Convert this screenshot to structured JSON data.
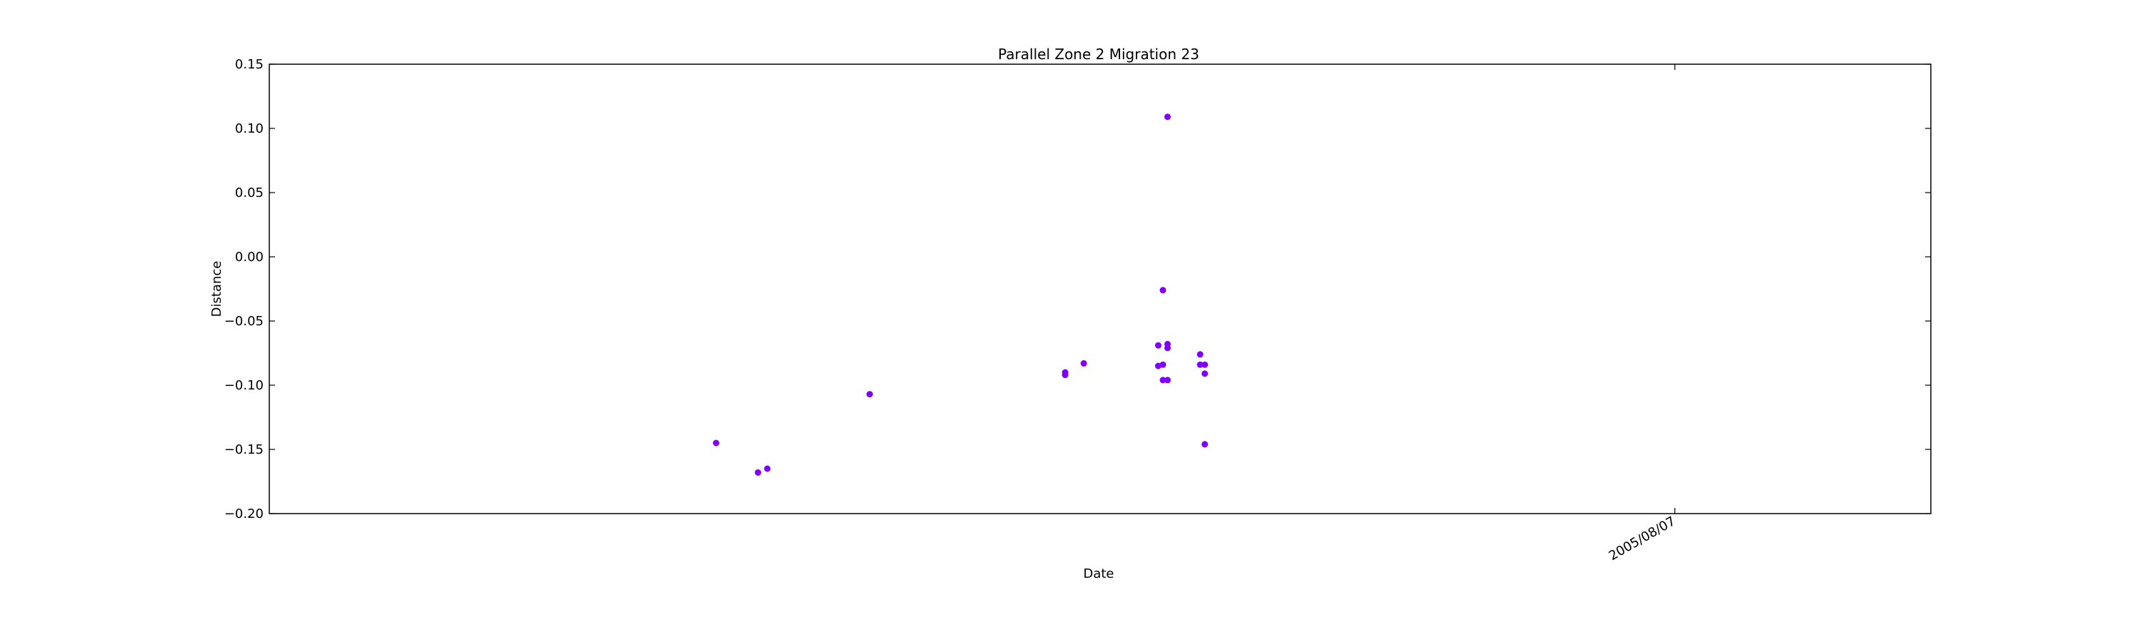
{
  "chart_data": {
    "type": "scatter",
    "title": "Parallel Zone 2 Migration 23",
    "xlabel": "Date",
    "ylabel": "Distance",
    "ylim": [
      -0.2,
      0.15
    ],
    "y_ticks": [
      "0.15",
      "0.10",
      "0.05",
      "0.00",
      "−0.05",
      "−0.10",
      "−0.15",
      "−0.20"
    ],
    "y_tick_values": [
      0.15,
      0.1,
      0.05,
      0.0,
      -0.05,
      -0.1,
      -0.15,
      -0.2
    ],
    "xlim": [
      "2004-10-09",
      "2005-10-01"
    ],
    "x_ticks": [
      "2005/08/07"
    ],
    "x_tick_values": [
      "2005-08-07"
    ],
    "marker_color": "#7f00ff",
    "grid": false,
    "series": [
      {
        "points": [
          {
            "x": "2005-01-13",
            "y": -0.145
          },
          {
            "x": "2005-01-22",
            "y": -0.168
          },
          {
            "x": "2005-01-24",
            "y": -0.165
          },
          {
            "x": "2005-02-15",
            "y": -0.107
          },
          {
            "x": "2005-03-29",
            "y": -0.09
          },
          {
            "x": "2005-03-29",
            "y": -0.092
          },
          {
            "x": "2005-04-02",
            "y": -0.083
          },
          {
            "x": "2005-04-18",
            "y": -0.069
          },
          {
            "x": "2005-04-18",
            "y": -0.085
          },
          {
            "x": "2005-04-19",
            "y": -0.084
          },
          {
            "x": "2005-04-19",
            "y": -0.026
          },
          {
            "x": "2005-04-19",
            "y": -0.096
          },
          {
            "x": "2005-04-20",
            "y": 0.109
          },
          {
            "x": "2005-04-20",
            "y": -0.096
          },
          {
            "x": "2005-04-20",
            "y": -0.068
          },
          {
            "x": "2005-04-20",
            "y": -0.071
          },
          {
            "x": "2005-04-27",
            "y": -0.076
          },
          {
            "x": "2005-04-27",
            "y": -0.084
          },
          {
            "x": "2005-04-28",
            "y": -0.084
          },
          {
            "x": "2005-04-28",
            "y": -0.091
          },
          {
            "x": "2005-04-28",
            "y": -0.146
          }
        ]
      }
    ]
  }
}
